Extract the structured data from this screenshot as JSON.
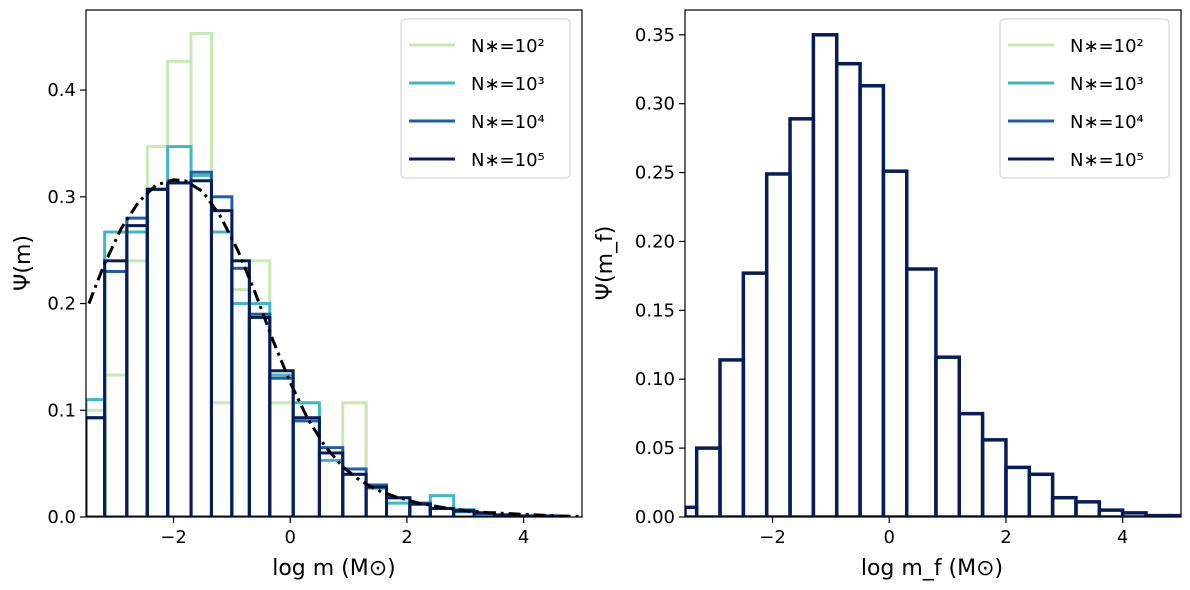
{
  "chart_data": [
    {
      "type": "histogram-step",
      "xlabel": "log m (M⊙)",
      "ylabel": "Ψ(m)",
      "xlim": [
        -3.5,
        5
      ],
      "ylim": [
        0,
        0.475
      ],
      "xticks": [
        -2,
        0,
        2,
        4
      ],
      "xtick_labels": [
        "−2",
        "0",
        "2",
        "4"
      ],
      "yticks": [
        0,
        0.1,
        0.2,
        0.3,
        0.4
      ],
      "ytick_labels": [
        "0.0",
        "0.1",
        "0.2",
        "0.3",
        "0.4"
      ],
      "grid": false,
      "legend": "top-right",
      "series": [
        {
          "name": "N∗=10²",
          "color": "#c7e9b4",
          "edges": [
            -3.5,
            -3.18,
            -2.8,
            -2.45,
            -2.1,
            -1.7,
            -1.35,
            -1.0,
            -0.7,
            -0.35,
            0.05,
            0.5,
            0.9,
            1.3
          ],
          "values": [
            0.1,
            0.133,
            0.24,
            0.347,
            0.427,
            0.453,
            0.107,
            0.213,
            0.24,
            0.107,
            0.107,
            0.053,
            0.107
          ]
        },
        {
          "name": "N∗=10³",
          "color": "#41b6c4",
          "edges": [
            -3.5,
            -3.18,
            -2.8,
            -2.45,
            -2.1,
            -1.7,
            -1.35,
            -1.0,
            -0.7,
            -0.35,
            0.05,
            0.5,
            0.9,
            1.3,
            1.65,
            2.05,
            2.4,
            2.8,
            3.15
          ],
          "values": [
            0.11,
            0.267,
            0.267,
            0.307,
            0.347,
            0.32,
            0.267,
            0.2,
            0.2,
            0.133,
            0.107,
            0.053,
            0.04,
            0.027,
            0.013,
            0.013,
            0.02,
            0.007
          ]
        },
        {
          "name": "N∗=10⁴",
          "color": "#225ea8",
          "edges": [
            -3.5,
            -3.18,
            -2.8,
            -2.45,
            -2.1,
            -1.7,
            -1.35,
            -1.0,
            -0.7,
            -0.35,
            0.05,
            0.5,
            0.9,
            1.3,
            1.65,
            2.05,
            2.4,
            2.8,
            3.15,
            3.5
          ],
          "values": [
            0.093,
            0.23,
            0.28,
            0.307,
            0.313,
            0.323,
            0.3,
            0.233,
            0.19,
            0.13,
            0.09,
            0.065,
            0.045,
            0.03,
            0.018,
            0.013,
            0.008,
            0.005,
            0.003
          ]
        },
        {
          "name": "N∗=10⁵",
          "color": "#081d58",
          "edges": [
            -3.5,
            -3.18,
            -2.8,
            -2.45,
            -2.1,
            -1.7,
            -1.35,
            -1.0,
            -0.7,
            -0.35,
            0.05,
            0.5,
            0.9,
            1.3,
            1.65,
            2.05,
            2.4,
            2.8,
            3.15,
            3.5,
            3.85,
            4.25,
            4.6,
            5.0
          ],
          "values": [
            0.093,
            0.24,
            0.273,
            0.307,
            0.313,
            0.315,
            0.287,
            0.24,
            0.187,
            0.137,
            0.093,
            0.06,
            0.04,
            0.028,
            0.018,
            0.012,
            0.008,
            0.006,
            0.004,
            0.002,
            0.001,
            0.001,
            0.0
          ]
        }
      ],
      "fit_curve": {
        "style": "dash-dot",
        "color": "#000000",
        "x": [
          -3.45,
          -3.2,
          -2.9,
          -2.6,
          -2.3,
          -2.0,
          -1.8,
          -1.5,
          -1.2,
          -0.9,
          -0.6,
          -0.3,
          0.0,
          0.3,
          0.6,
          0.9,
          1.2,
          1.5,
          1.8,
          2.2,
          2.6,
          3.0,
          3.4,
          3.8,
          4.2,
          4.6,
          5.0
        ],
        "y": [
          0.2,
          0.235,
          0.27,
          0.295,
          0.311,
          0.316,
          0.315,
          0.305,
          0.282,
          0.25,
          0.21,
          0.166,
          0.126,
          0.092,
          0.066,
          0.047,
          0.034,
          0.025,
          0.019,
          0.013,
          0.009,
          0.006,
          0.004,
          0.003,
          0.002,
          0.001,
          0.0005
        ]
      }
    },
    {
      "type": "histogram-step",
      "xlabel": "log m_f (M⊙)",
      "ylabel": "Ψ(m_f)",
      "xlim": [
        -3.5,
        5
      ],
      "ylim": [
        0,
        0.368
      ],
      "xticks": [
        -2,
        0,
        2,
        4
      ],
      "xtick_labels": [
        "−2",
        "0",
        "2",
        "4"
      ],
      "yticks": [
        0,
        0.05,
        0.1,
        0.15,
        0.2,
        0.25,
        0.3,
        0.35
      ],
      "ytick_labels": [
        "0.00",
        "0.05",
        "0.10",
        "0.15",
        "0.20",
        "0.25",
        "0.30",
        "0.35"
      ],
      "grid": false,
      "legend": "top-right",
      "series": [
        {
          "name": "N∗=10²",
          "color": "#c7e9b4"
        },
        {
          "name": "N∗=10³",
          "color": "#41b6c4"
        },
        {
          "name": "N∗=10⁴",
          "color": "#225ea8"
        },
        {
          "name": "N∗=10⁵",
          "color": "#081d58",
          "edges": [
            -3.5,
            -3.3,
            -2.9,
            -2.5,
            -2.1,
            -1.7,
            -1.3,
            -0.9,
            -0.5,
            -0.1,
            0.3,
            0.8,
            1.2,
            1.6,
            2.0,
            2.4,
            2.8,
            3.2,
            3.6,
            4.0,
            4.4,
            4.8,
            5.0
          ],
          "values": [
            0.007,
            0.05,
            0.114,
            0.177,
            0.249,
            0.289,
            0.35,
            0.329,
            0.313,
            0.251,
            0.18,
            0.116,
            0.075,
            0.056,
            0.036,
            0.031,
            0.014,
            0.011,
            0.005,
            0.003,
            0.001,
            0.001
          ]
        }
      ]
    }
  ]
}
